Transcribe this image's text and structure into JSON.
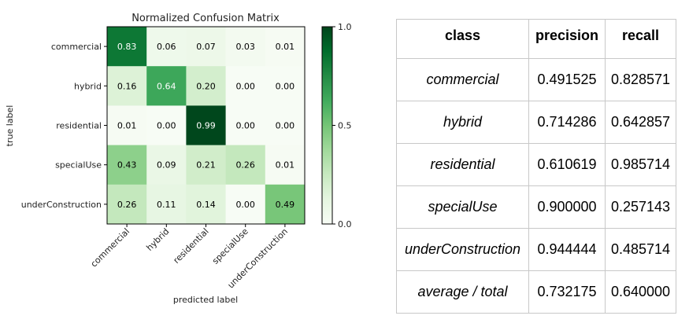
{
  "chart_data": {
    "type": "heatmap",
    "title": "Normalized Confusion Matrix",
    "xlabel": "predicted label",
    "ylabel": "true label",
    "row_labels": [
      "commercial",
      "hybrid",
      "residential",
      "specialUse",
      "underConstruction"
    ],
    "col_labels": [
      "commercial",
      "hybrid",
      "residential",
      "specialUse",
      "underConstruction"
    ],
    "values": [
      [
        0.83,
        0.06,
        0.07,
        0.03,
        0.01
      ],
      [
        0.16,
        0.64,
        0.2,
        0.0,
        0.0
      ],
      [
        0.01,
        0.0,
        0.99,
        0.0,
        0.0
      ],
      [
        0.43,
        0.09,
        0.21,
        0.26,
        0.01
      ],
      [
        0.26,
        0.11,
        0.14,
        0.0,
        0.49
      ]
    ],
    "colorbar": {
      "ticks": [
        "0.0",
        "0.5",
        "1.0"
      ],
      "tick_values": [
        0,
        0.5,
        1
      ],
      "range": [
        0,
        1
      ],
      "colormap": "Greens",
      "color_low": "#f7fcf5",
      "color_high": "#00441b"
    }
  },
  "table": {
    "headers": [
      "class",
      "precision",
      "recall"
    ],
    "rows": [
      {
        "class": "commercial",
        "precision": "0.491525",
        "recall": "0.828571"
      },
      {
        "class": "hybrid",
        "precision": "0.714286",
        "recall": "0.642857"
      },
      {
        "class": "residential",
        "precision": "0.610619",
        "recall": "0.985714"
      },
      {
        "class": "specialUse",
        "precision": "0.900000",
        "recall": "0.257143"
      },
      {
        "class": "underConstruction",
        "precision": "0.944444",
        "recall": "0.485714"
      },
      {
        "class": "average / total",
        "precision": "0.732175",
        "recall": "0.640000"
      }
    ]
  }
}
